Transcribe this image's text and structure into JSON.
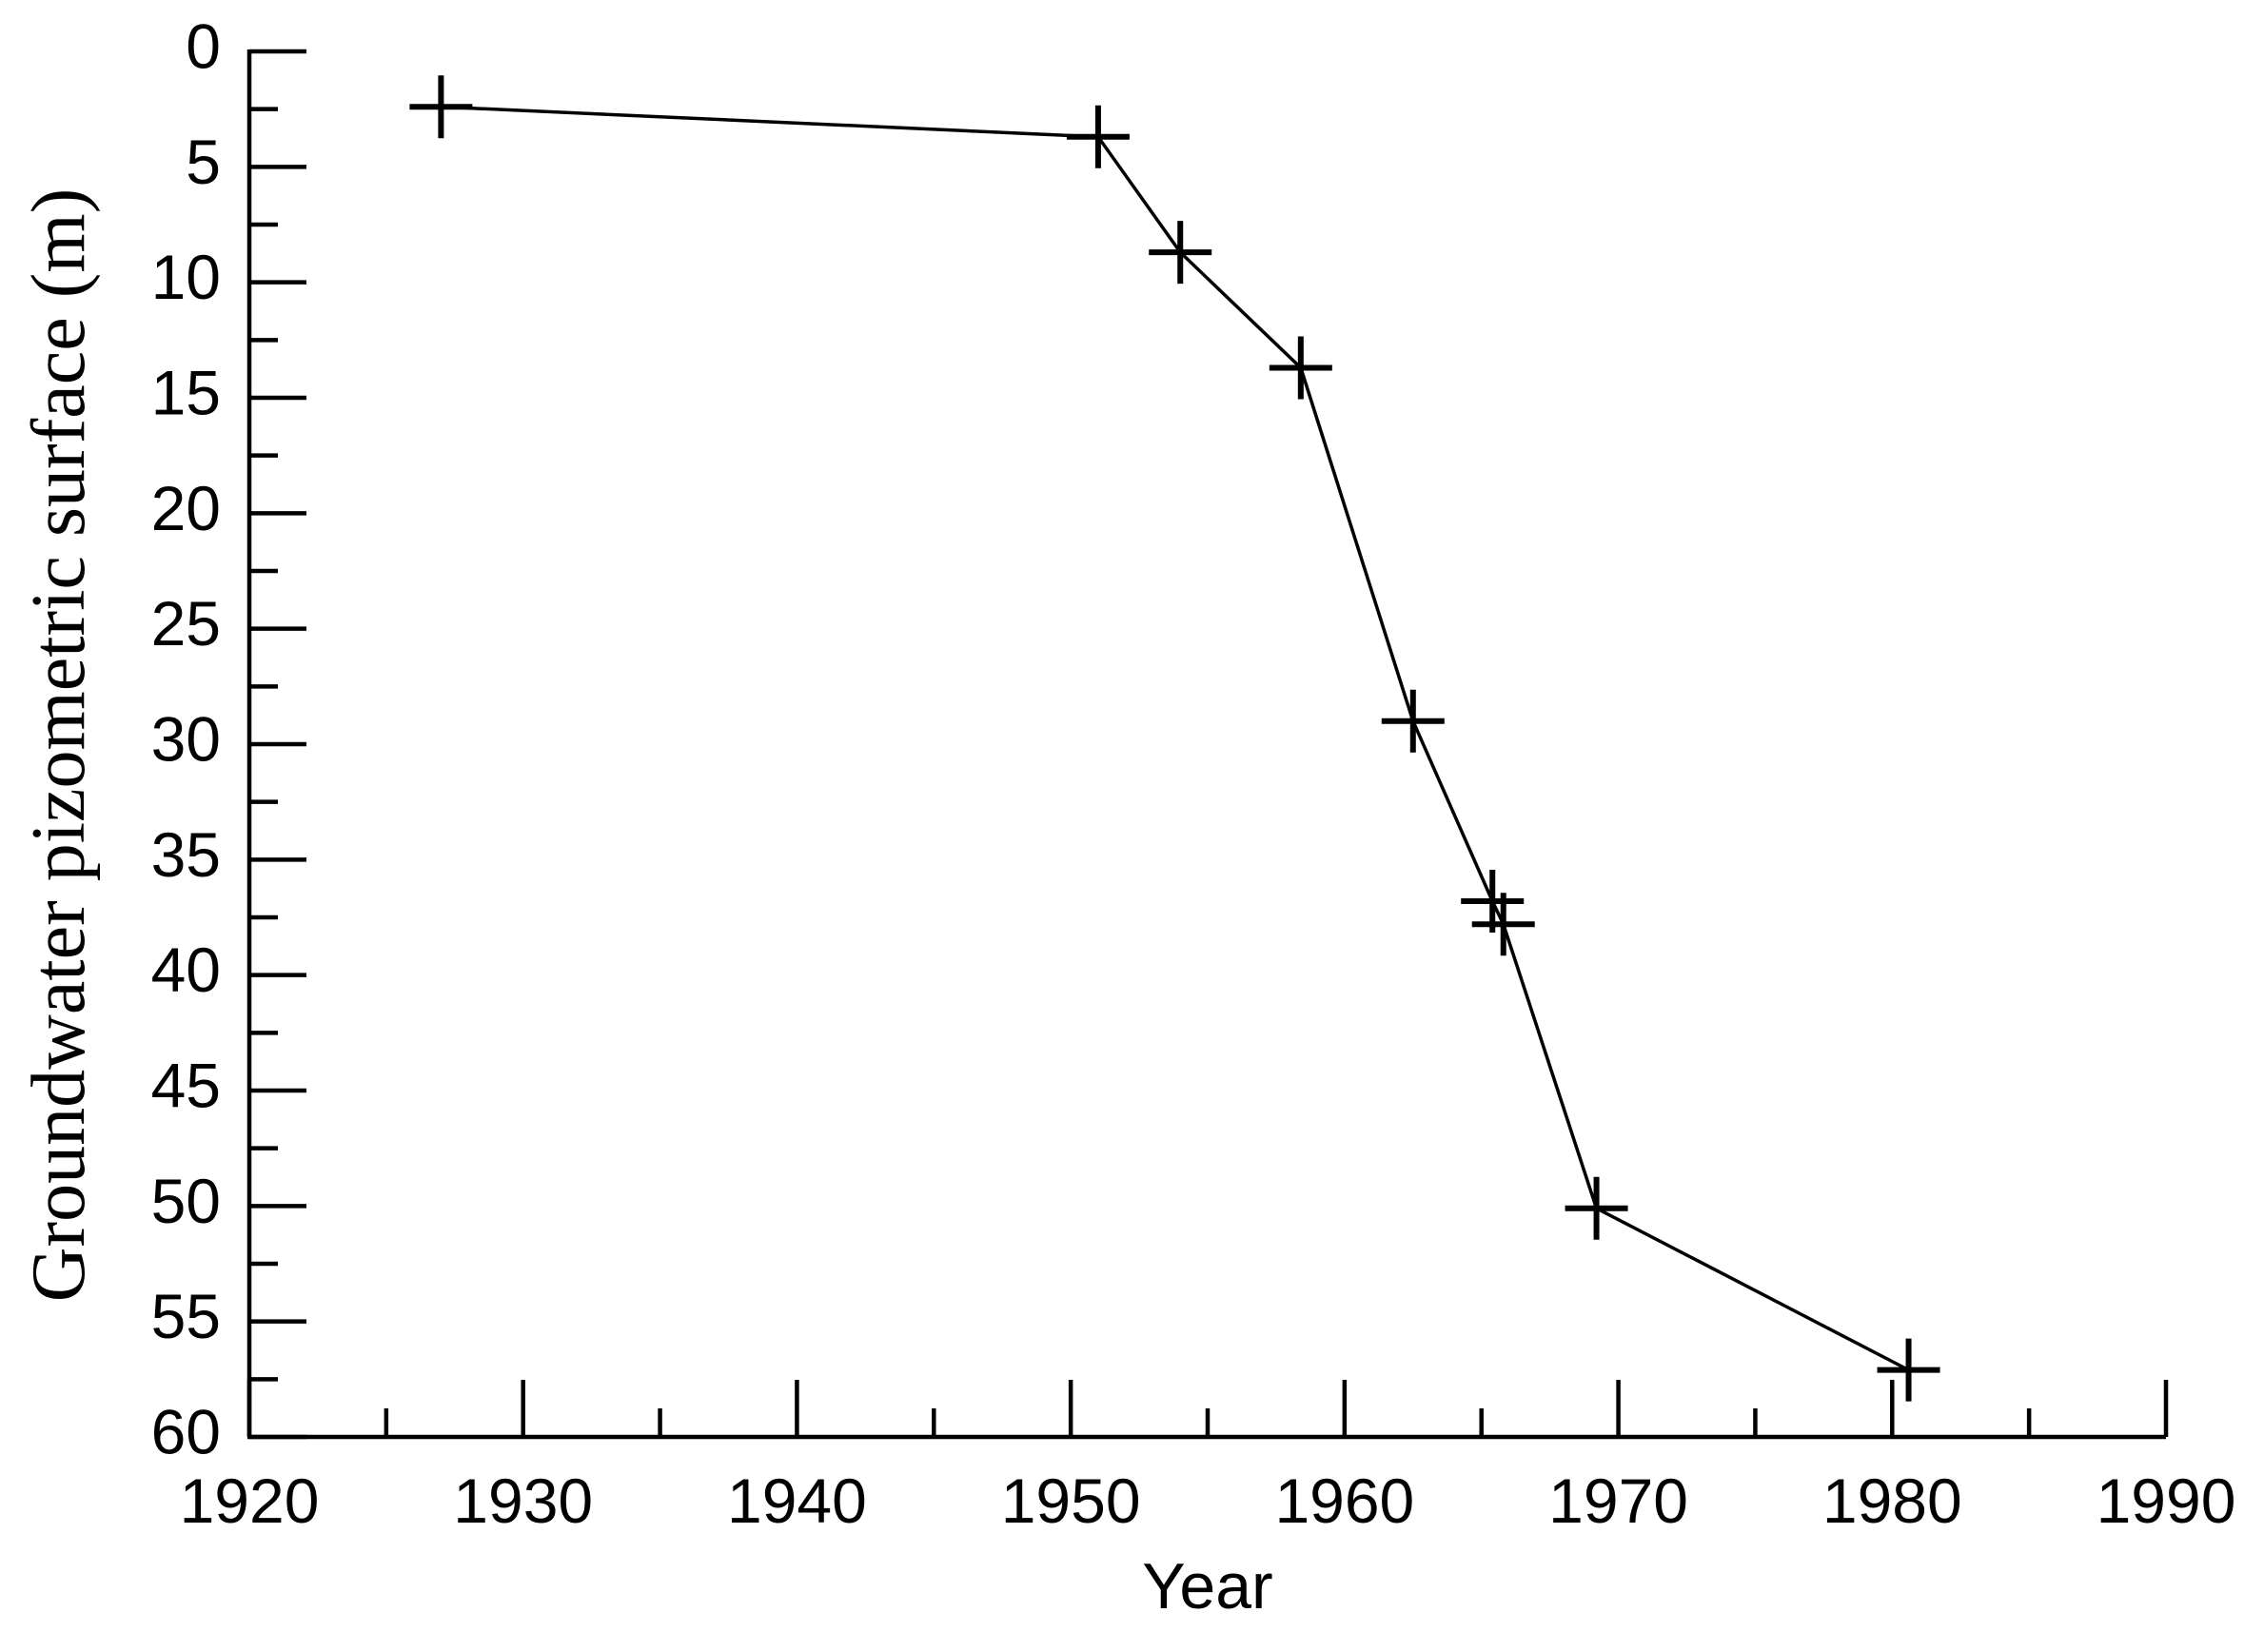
{
  "chart_data": {
    "type": "line",
    "x_label": "Year",
    "y_label": "Groundwater pizometric surface (m)",
    "series": [
      {
        "color": "#000000",
        "marker": "plus",
        "x": [
          1927,
          1951,
          1954,
          1958.4,
          1962.5,
          1965.4,
          1965.8,
          1969.2,
          1980.6
        ],
        "values": [
          2.4,
          3.7,
          8.7,
          13.7,
          29.0,
          36.8,
          37.8,
          50.1,
          57.1
        ]
      }
    ],
    "xlim": [
      1920,
      1990
    ],
    "xticks": [
      1920,
      1930,
      1940,
      1950,
      1960,
      1970,
      1980,
      1990
    ],
    "x_minor_ticks": [
      1925,
      1935,
      1945,
      1955,
      1965,
      1975,
      1985
    ],
    "ylim": [
      0,
      60
    ],
    "y_inverted": true,
    "yticks": [
      0,
      5,
      10,
      15,
      20,
      25,
      30,
      35,
      40,
      45,
      50,
      55,
      60
    ],
    "y_minor_ticks": [
      2.5,
      7.5,
      12.5,
      17.5,
      22.5,
      27.5,
      32.5,
      37.5,
      42.5,
      47.5,
      52.5,
      57.5
    ],
    "grid": false
  }
}
